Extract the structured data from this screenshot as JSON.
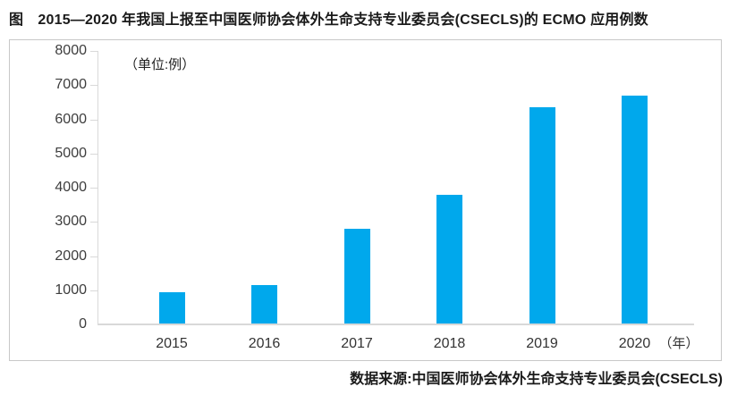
{
  "figure": {
    "title": "图　2015—2020 年我国上报至中国医师协会体外生命支持专业委员会(CSECLS)的 ECMO 应用例数",
    "unit_label": "（单位:例）",
    "x_axis_unit_label": "（年）",
    "source": "数据来源:中国医师协会体外生命支持专业委员会(CSECLS)"
  },
  "colors": {
    "bar": "#00A8EC",
    "axis_line": "#D9D9D9",
    "box_border": "#C8C8C8",
    "title_text": "#1A1A1A",
    "axis_label_text": "#3D3D3D"
  },
  "chart_data": {
    "type": "bar",
    "categories": [
      "2015",
      "2016",
      "2017",
      "2018",
      "2019",
      "2020"
    ],
    "values": [
      950,
      1150,
      2800,
      3800,
      6350,
      6700
    ],
    "title": "2015—2020 年我国上报至中国医师协会体外生命支持专业委员会(CSECLS)的 ECMO 应用例数",
    "xlabel": "年",
    "ylabel": "例",
    "ylim": [
      0,
      8000
    ],
    "y_tick_interval": 1000,
    "y_tick_labels": [
      "0",
      "1000",
      "2000",
      "3000",
      "4000",
      "5000",
      "6000",
      "7000",
      "8000"
    ],
    "grid": false,
    "legend": false
  }
}
